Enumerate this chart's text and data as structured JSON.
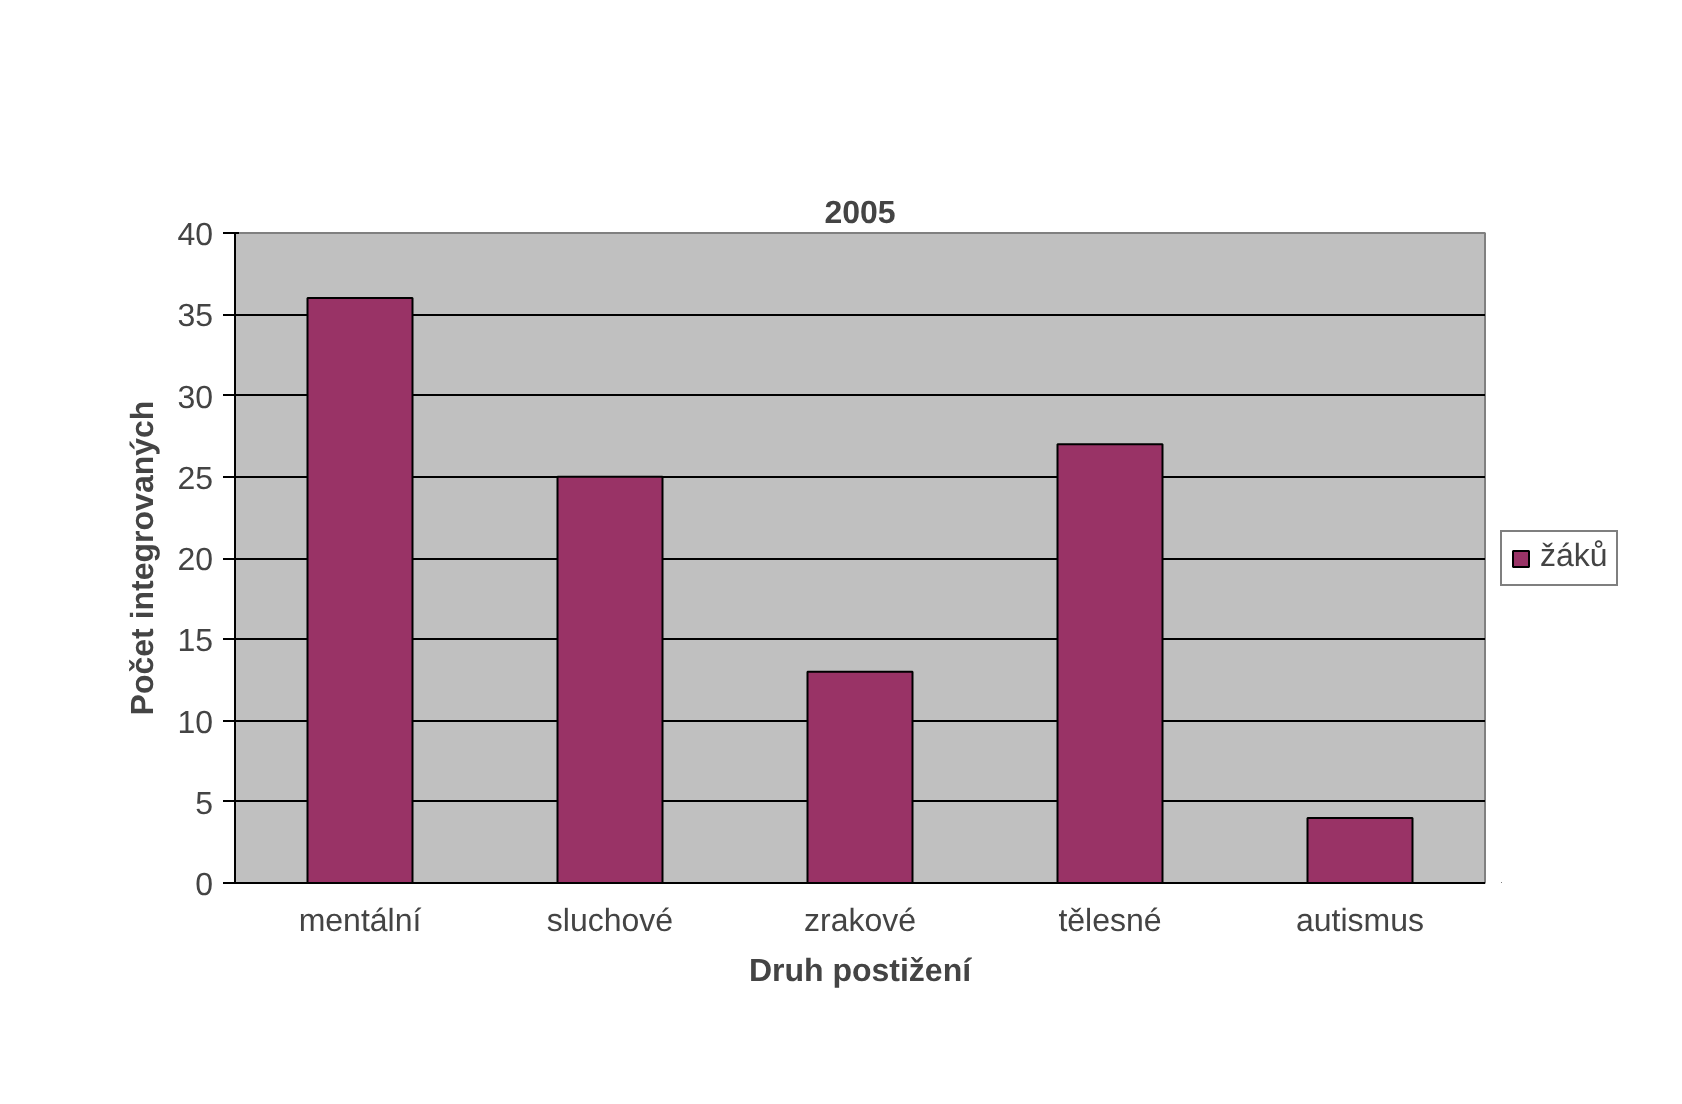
{
  "chart_data": {
    "type": "bar",
    "title": "2005",
    "xlabel": "Druh postižení",
    "ylabel": "Počet integrovaných",
    "categories": [
      "mentální",
      "sluchové",
      "zrakové",
      "tělesné",
      "autismus"
    ],
    "series": [
      {
        "name": "žáků",
        "color": "#993366",
        "values": [
          36,
          25,
          13,
          27,
          4
        ]
      }
    ],
    "ylim": [
      0,
      40
    ],
    "yticks": [
      0,
      5,
      10,
      15,
      20,
      25,
      30,
      35,
      40
    ],
    "grid": "y",
    "legend": "right"
  }
}
